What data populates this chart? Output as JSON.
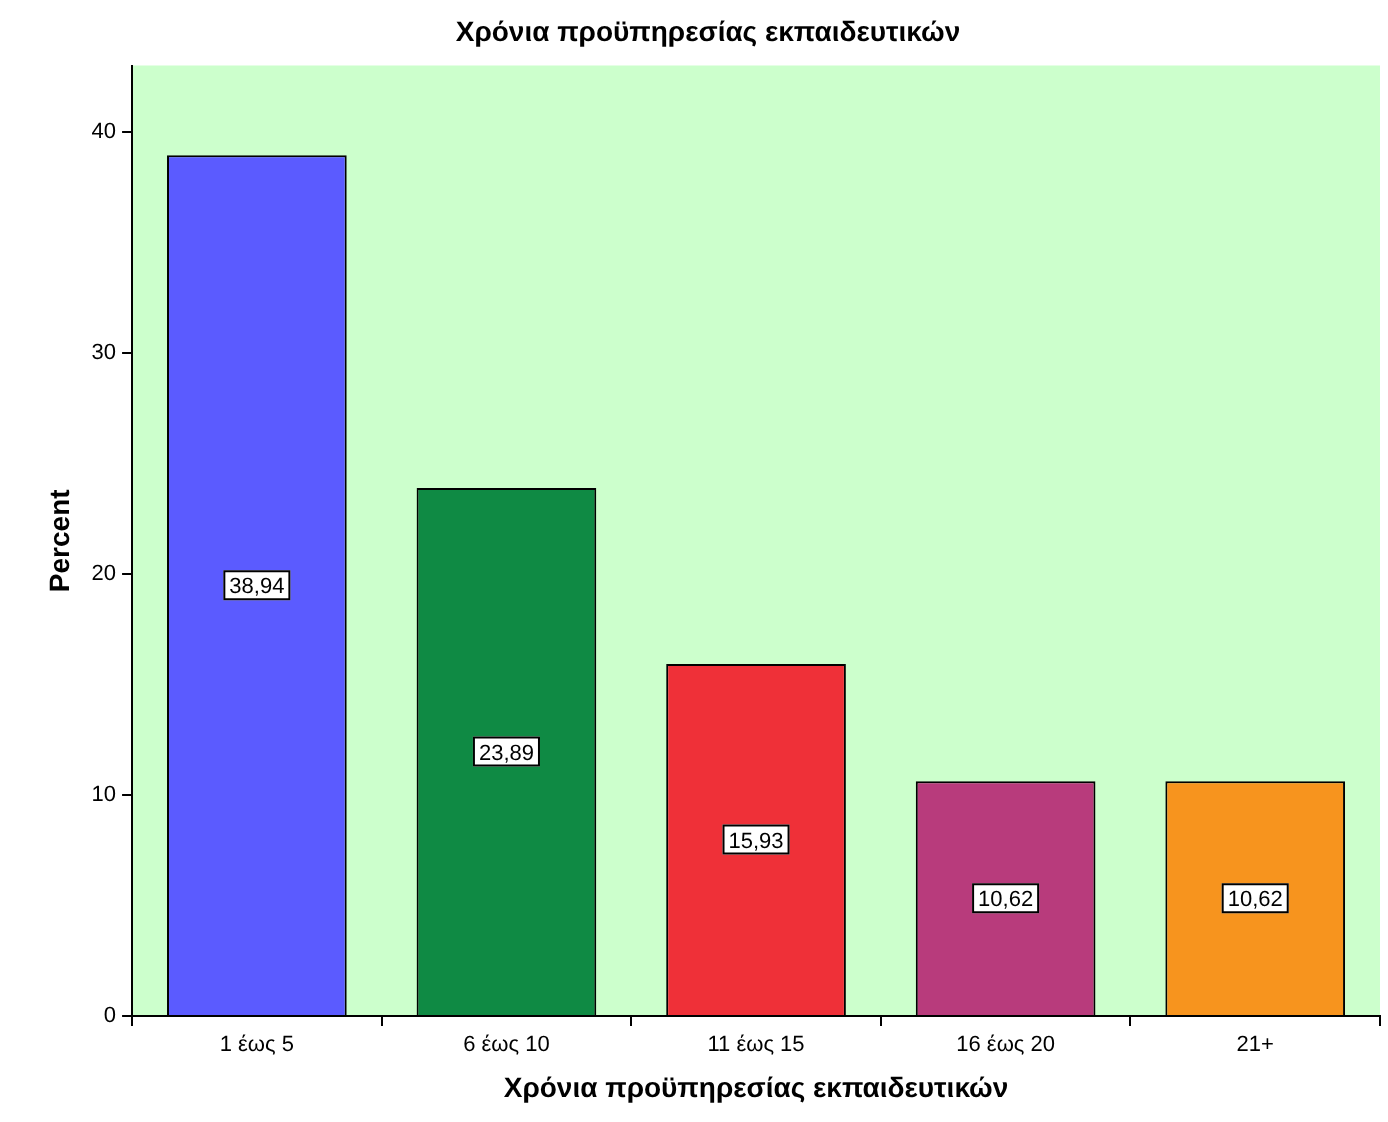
{
  "chart_data": {
    "type": "bar",
    "title": "Χρόνια προϋπηρεσίας εκπαιδευτικών",
    "xlabel": "Χρόνια προϋπηρεσίας εκπαιδευτικών",
    "ylabel": "Percent",
    "categories": [
      "1 έως 5",
      "6 έως 10",
      "11 έως 15",
      "16 έως 20",
      "21+"
    ],
    "values": [
      38.94,
      23.89,
      15.93,
      10.62,
      10.62
    ],
    "value_labels": [
      "38,94",
      "23,89",
      "15,93",
      "10,62",
      "10,62"
    ],
    "colors": [
      "#5b5bff",
      "#0f8a44",
      "#ef3038",
      "#b83b7c",
      "#f7941e"
    ],
    "ylim": [
      0,
      43
    ],
    "yticks": [
      0,
      10,
      20,
      30,
      40
    ],
    "grid": false,
    "legend": false
  }
}
